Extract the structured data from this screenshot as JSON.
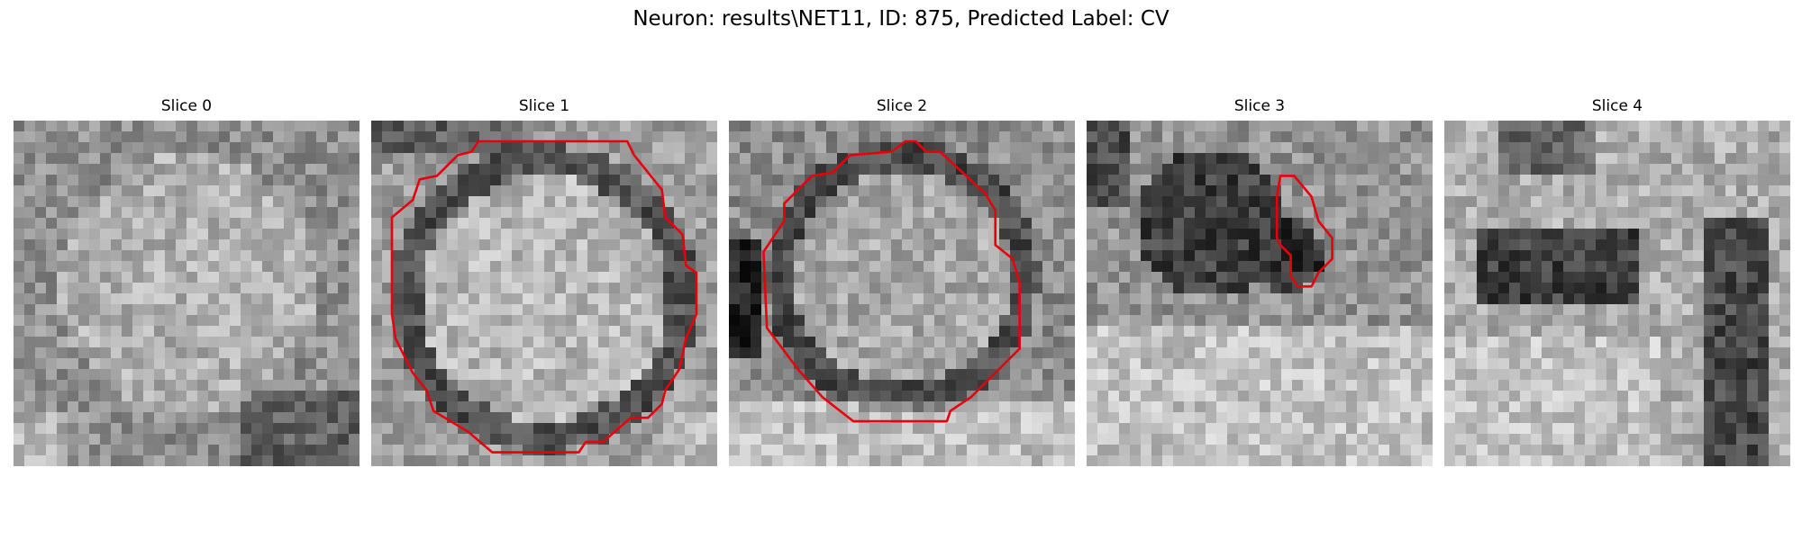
{
  "figure": {
    "title": "Neuron: results\\NET11, ID: 875, Predicted Label: CV",
    "contour_color": "#e8000b",
    "panels": [
      {
        "title": "Slice 0",
        "has_contour": false
      },
      {
        "title": "Slice 1",
        "has_contour": true
      },
      {
        "title": "Slice 2",
        "has_contour": true
      },
      {
        "title": "Slice 3",
        "has_contour": true
      },
      {
        "title": "Slice 4",
        "has_contour": false
      }
    ]
  }
}
